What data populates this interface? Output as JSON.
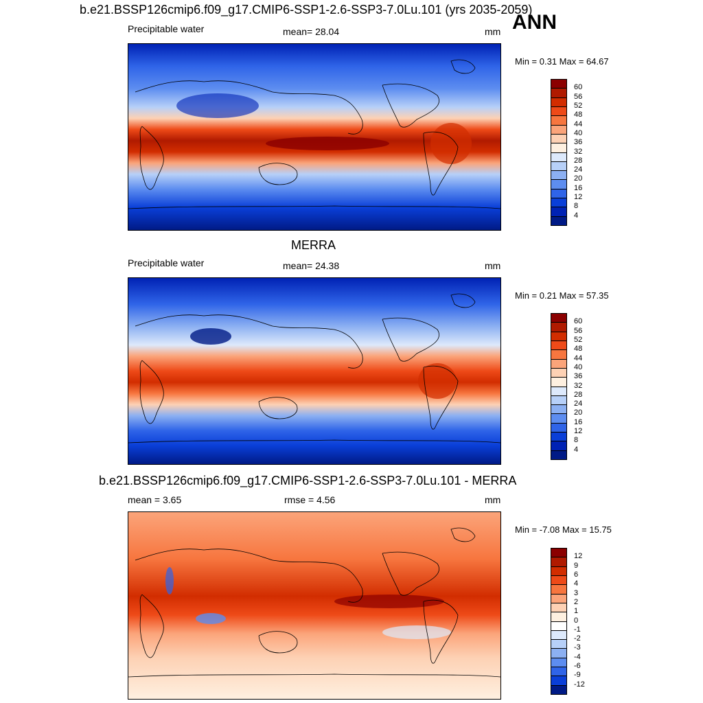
{
  "title": "b.e21.BSSP126cmip6.f09_g17.CMIP6-SSP1-2.6-SSP3-7.0Lu.101 (yrs 2035-2059)",
  "season": "ANN",
  "panels": [
    {
      "variable": "Precipitable water",
      "stat_text": "mean=  28.04",
      "units": "mm",
      "minmax": "Min =   0.31 Max =  64.67",
      "colorbar": {
        "labels": [
          "60",
          "56",
          "52",
          "48",
          "44",
          "40",
          "36",
          "32",
          "28",
          "24",
          "20",
          "16",
          "12",
          "8",
          "4"
        ],
        "colors": [
          "#8b0000",
          "#b01a00",
          "#d22d00",
          "#ee4a18",
          "#f7763f",
          "#fba47a",
          "#fdd1b4",
          "#fef0e0",
          "#dde9fb",
          "#b7d0f8",
          "#8cb0f2",
          "#5d8df0",
          "#2f64e8",
          "#0a3fd8",
          "#0022b4",
          "#001a86"
        ]
      }
    },
    {
      "heading": "MERRA",
      "variable": "Precipitable water",
      "stat_text": "mean=  24.38",
      "units": "mm",
      "minmax": "Min =   0.21 Max =  57.35",
      "colorbar": {
        "labels": [
          "60",
          "56",
          "52",
          "48",
          "44",
          "40",
          "36",
          "32",
          "28",
          "24",
          "20",
          "16",
          "12",
          "8",
          "4"
        ],
        "colors": [
          "#8b0000",
          "#b01a00",
          "#d22d00",
          "#ee4a18",
          "#f7763f",
          "#fba47a",
          "#fdd1b4",
          "#fef0e0",
          "#dde9fb",
          "#b7d0f8",
          "#8cb0f2",
          "#5d8df0",
          "#2f64e8",
          "#0a3fd8",
          "#0022b4",
          "#001a86"
        ]
      }
    },
    {
      "heading": "b.e21.BSSP126cmip6.f09_g17.CMIP6-SSP1-2.6-SSP3-7.0Lu.101 - MERRA",
      "stat_left": "mean =   3.65",
      "stat_text": "rmse =   4.56",
      "units": "mm",
      "minmax": "Min =  -7.08 Max =  15.75",
      "colorbar": {
        "labels": [
          "12",
          "9",
          "6",
          "4",
          "3",
          "2",
          "1",
          "0",
          "-1",
          "-2",
          "-3",
          "-4",
          "-6",
          "-9",
          "-12"
        ],
        "colors": [
          "#8b0000",
          "#b01a00",
          "#d22d00",
          "#ee4a18",
          "#f7763f",
          "#fba47a",
          "#fdd1b4",
          "#fef0e0",
          "#ffffff",
          "#dde9fb",
          "#b7d0f8",
          "#8cb0f2",
          "#5d8df0",
          "#2f64e8",
          "#0a3fd8",
          "#001a86"
        ]
      }
    }
  ]
}
